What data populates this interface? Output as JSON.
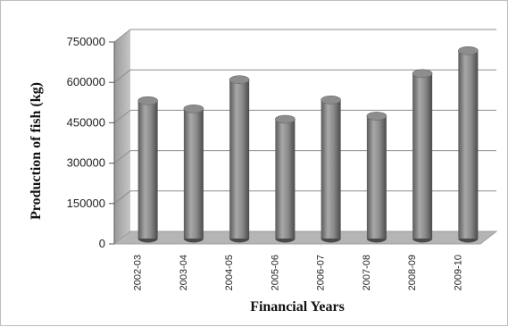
{
  "chart_data": {
    "type": "bar",
    "title": "",
    "xlabel": "Financial Years",
    "ylabel": "Production of fish (kg)",
    "categories": [
      "2002-03",
      "2003-04",
      "2004-05",
      "2005-06",
      "2006-07",
      "2007-08",
      "2008-09",
      "2009-10"
    ],
    "values": [
      512000,
      482000,
      590000,
      443000,
      515000,
      455000,
      613000,
      698000
    ],
    "yticks": [
      "0",
      "150000",
      "300000",
      "450000",
      "600000",
      "750000"
    ],
    "ylim": [
      0,
      750000
    ],
    "grid": true,
    "legend": "none",
    "bar_color": "#7a7a7a",
    "style": "3d-cylinder"
  }
}
